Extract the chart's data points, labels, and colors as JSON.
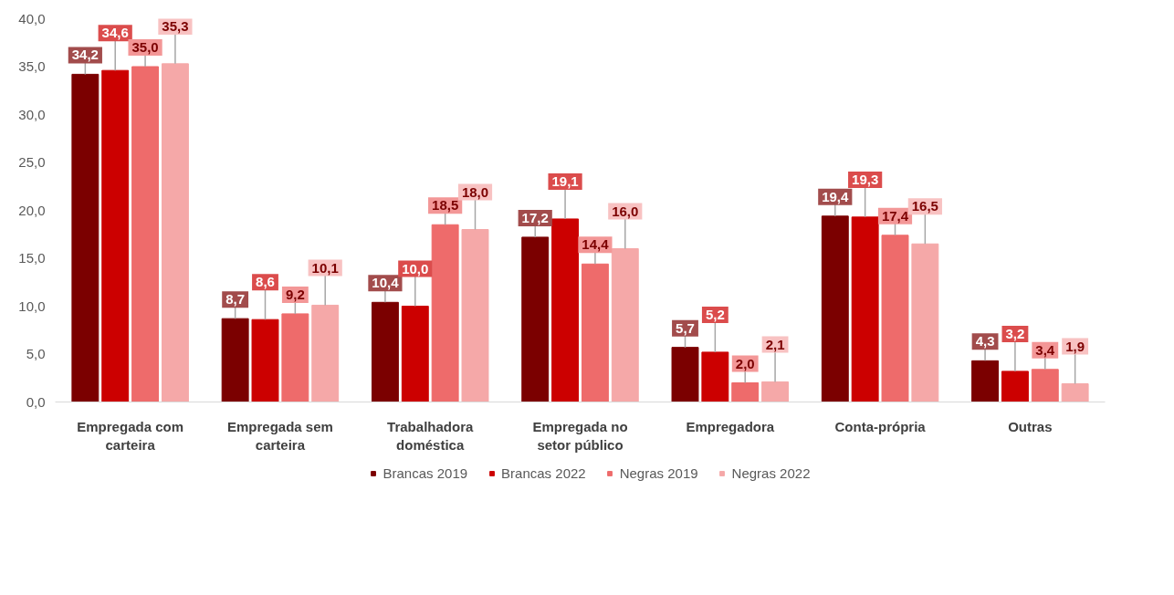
{
  "chart_data": {
    "type": "bar",
    "categories": [
      "Empregada com carteira",
      "Empregada sem carteira",
      "Trabalhadora doméstica",
      "Empregada no setor público",
      "Empregadora",
      "Conta-própria",
      "Outras"
    ],
    "series": [
      {
        "name": "Brancas 2019",
        "color": "#7b0000",
        "values": [
          34.2,
          8.7,
          10.4,
          17.2,
          5.7,
          19.4,
          4.3
        ],
        "value_labels": [
          "34,2",
          "8,7",
          "10,4",
          "17,2",
          "5,7",
          "19,4",
          "4,3"
        ]
      },
      {
        "name": "Brancas 2022",
        "color": "#cc0000",
        "values": [
          34.6,
          8.6,
          10.0,
          19.1,
          5.2,
          19.3,
          3.2
        ],
        "value_labels": [
          "34,6",
          "8,6",
          "10,0",
          "19,1",
          "5,2",
          "19,3",
          "3,2"
        ]
      },
      {
        "name": "Negras 2019",
        "color": "#ee6b6b",
        "values": [
          35.0,
          9.2,
          18.5,
          14.4,
          2.0,
          17.4,
          3.4
        ],
        "value_labels": [
          "35,0",
          "9,2",
          "18,5",
          "14,4",
          "2,0",
          "17,4",
          "3,4"
        ]
      },
      {
        "name": "Negras 2022",
        "color": "#f5a8a8",
        "values": [
          35.3,
          10.1,
          18.0,
          16.0,
          2.1,
          16.5,
          1.9
        ],
        "value_labels": [
          "35,3",
          "10,1",
          "18,0",
          "16,0",
          "2,1",
          "16,5",
          "1,9"
        ]
      }
    ],
    "ylim": [
      0,
      40
    ],
    "yticks": [
      {
        "value": 0,
        "label": "0,0"
      },
      {
        "value": 5,
        "label": "5,0"
      },
      {
        "value": 10,
        "label": "10,0"
      },
      {
        "value": 15,
        "label": "15,0"
      },
      {
        "value": 20,
        "label": "20,0"
      },
      {
        "value": 25,
        "label": "25,0"
      },
      {
        "value": 30,
        "label": "30,0"
      },
      {
        "value": 35,
        "label": "35,0"
      },
      {
        "value": 40,
        "label": "40,0"
      }
    ],
    "grid": false,
    "legend": "bottom"
  }
}
